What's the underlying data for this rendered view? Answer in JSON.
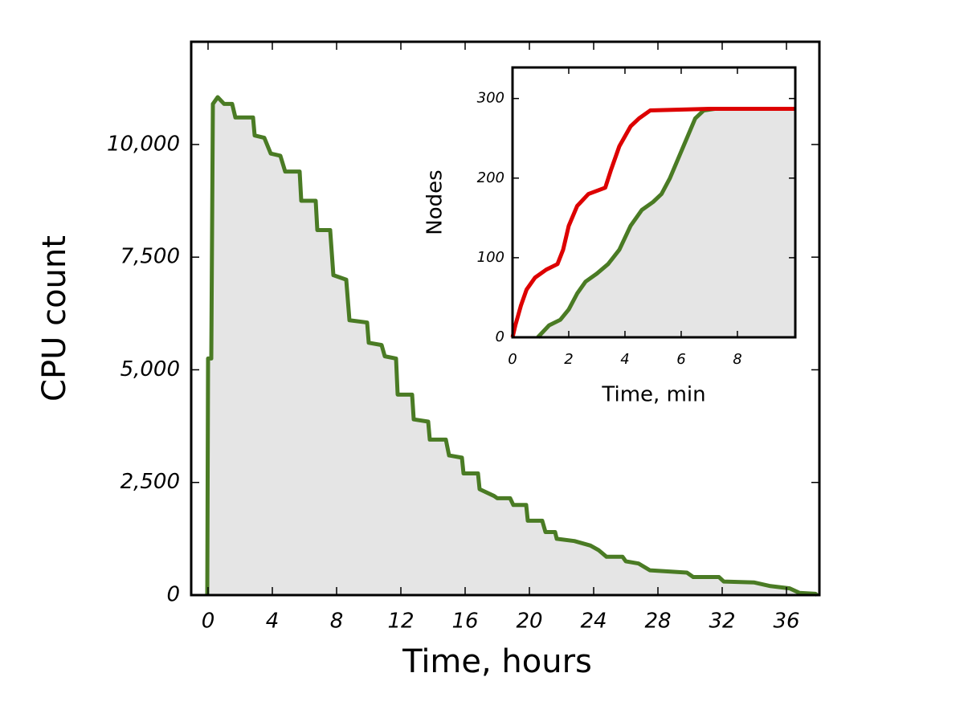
{
  "chart_data": [
    {
      "type": "line",
      "x_label": "Time, hours",
      "y_label": "CPU count",
      "xlim": [
        -1.05,
        38.05
      ],
      "ylim": [
        0,
        12280
      ],
      "xticks": [
        0,
        4,
        8,
        12,
        16,
        20,
        24,
        28,
        32,
        36
      ],
      "yticks": [
        0,
        {
          "value": 2500,
          "label": "2,500"
        },
        {
          "value": 5000,
          "label": "5,000"
        },
        {
          "value": 7500,
          "label": "7,500"
        },
        {
          "value": 10000,
          "label": "10,000"
        }
      ],
      "series": [
        {
          "color": "#4a7b24",
          "fill_color": "#e5e5e5",
          "x": [
            -0.05,
            0,
            0.2,
            0.3,
            0.6,
            1,
            1.5,
            1.7,
            2.8,
            2.9,
            3.5,
            3.9,
            4.5,
            4.8,
            5.7,
            5.8,
            6.7,
            6.8,
            7.6,
            7.8,
            8.6,
            8.8,
            9.9,
            10,
            10.8,
            11,
            11.7,
            11.8,
            12.7,
            12.8,
            13.7,
            13.8,
            14.8,
            15,
            15.8,
            15.9,
            16.8,
            16.9,
            17.8,
            18,
            18.8,
            19,
            19.8,
            19.9,
            20.8,
            21,
            21.6,
            21.7,
            22.8,
            23.8,
            24.3,
            24.8,
            25.8,
            26,
            26.8,
            27.5,
            29.8,
            30.2,
            31.8,
            32.1,
            34,
            35,
            36.2,
            36.8,
            37.8,
            37.9
          ],
          "values": [
            0,
            5250,
            5250,
            10900,
            11050,
            10900,
            10900,
            10600,
            10600,
            10200,
            10150,
            9800,
            9750,
            9400,
            9400,
            8750,
            8750,
            8100,
            8100,
            7100,
            7000,
            6100,
            6050,
            5600,
            5550,
            5300,
            5250,
            4450,
            4450,
            3900,
            3850,
            3450,
            3450,
            3100,
            3050,
            2700,
            2700,
            2350,
            2200,
            2150,
            2150,
            2000,
            2000,
            1650,
            1650,
            1400,
            1400,
            1250,
            1200,
            1100,
            1000,
            850,
            850,
            750,
            700,
            550,
            500,
            400,
            400,
            300,
            280,
            200,
            150,
            50,
            30,
            0
          ]
        }
      ]
    },
    {
      "type": "line",
      "x_label": "Time, min",
      "y_label": "Nodes",
      "xlim": [
        0,
        10.06
      ],
      "ylim": [
        0,
        339
      ],
      "xticks": [
        0,
        2,
        4,
        6,
        8
      ],
      "yticks": [
        0,
        100,
        200,
        300
      ],
      "series": [
        {
          "color": "#4a7b24",
          "fill_color": "#e5e5e5",
          "x": [
            0.9,
            1.3,
            1.7,
            2,
            2.3,
            2.6,
            3,
            3.4,
            3.8,
            4.2,
            4.6,
            5,
            5.3,
            5.6,
            5.9,
            6.2,
            6.5,
            6.8,
            7.2,
            10.06
          ],
          "values": [
            0,
            15,
            22,
            35,
            55,
            70,
            80,
            92,
            110,
            140,
            160,
            170,
            180,
            200,
            225,
            250,
            275,
            285,
            287,
            287
          ]
        },
        {
          "color": "#dd0000",
          "x": [
            0,
            0.1,
            0.3,
            0.5,
            0.8,
            1.2,
            1.6,
            1.8,
            2,
            2.3,
            2.7,
            3.3,
            3.5,
            3.8,
            4.2,
            4.5,
            4.9,
            7,
            10.06
          ],
          "values": [
            0,
            15,
            40,
            60,
            75,
            85,
            92,
            110,
            140,
            165,
            180,
            188,
            210,
            240,
            265,
            275,
            285,
            287,
            287
          ]
        }
      ]
    }
  ]
}
